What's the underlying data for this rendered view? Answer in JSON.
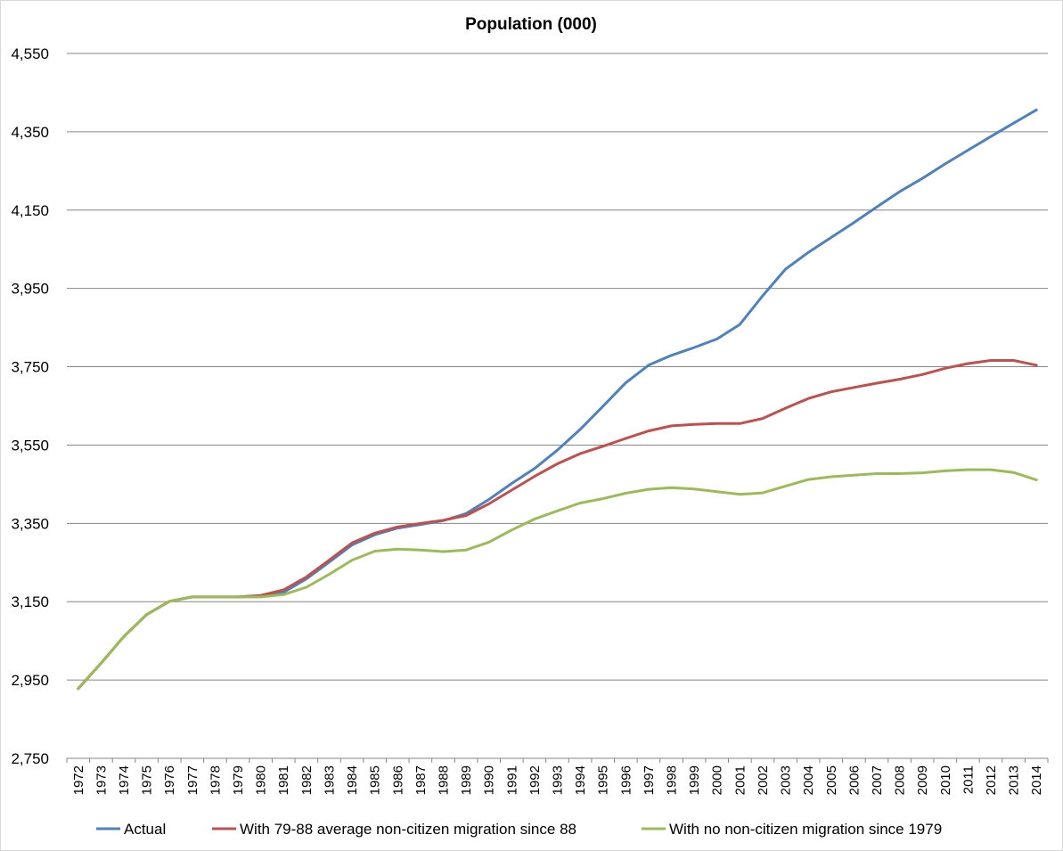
{
  "chart_data": {
    "type": "line",
    "title": "Population (000)",
    "xlabel": "",
    "ylabel": "",
    "ylim": [
      2750,
      4550
    ],
    "yticks": [
      "2,750",
      "2,950",
      "3,150",
      "3,350",
      "3,550",
      "3,750",
      "3,950",
      "4,150",
      "4,350",
      "4,550"
    ],
    "ytick_values": [
      2750,
      2950,
      3150,
      3350,
      3550,
      3750,
      3950,
      4150,
      4350,
      4550
    ],
    "grid": "horizontal",
    "legend_position": "bottom",
    "categories": [
      "1972",
      "1973",
      "1974",
      "1975",
      "1976",
      "1977",
      "1978",
      "1979",
      "1980",
      "1981",
      "1982",
      "1983",
      "1984",
      "1985",
      "1986",
      "1987",
      "1988",
      "1989",
      "1990",
      "1991",
      "1992",
      "1993",
      "1994",
      "1995",
      "1996",
      "1997",
      "1998",
      "1999",
      "2000",
      "2001",
      "2002",
      "2003",
      "2004",
      "2005",
      "2006",
      "2007",
      "2008",
      "2009",
      "2010",
      "2011",
      "2012",
      "2013",
      "2014"
    ],
    "series": [
      {
        "name": "Actual",
        "color": "#4f81bd",
        "values": [
          2928,
          2993,
          3061,
          3117,
          3151,
          3162,
          3162,
          3162,
          3163,
          3174,
          3208,
          3251,
          3295,
          3321,
          3338,
          3347,
          3357,
          3375,
          3411,
          3452,
          3490,
          3537,
          3590,
          3649,
          3709,
          3754,
          3779,
          3799,
          3821,
          3858,
          3931,
          3999,
          4042,
          4080,
          4118,
          4158,
          4197,
          4231,
          4268,
          4303,
          4338,
          4372,
          4406
        ]
      },
      {
        "name": "With 79-88 average non-citizen migration since 88",
        "color": "#c0504d",
        "values": [
          2928,
          2993,
          3061,
          3117,
          3151,
          3162,
          3162,
          3162,
          3166,
          3180,
          3213,
          3256,
          3300,
          3325,
          3341,
          3350,
          3358,
          3370,
          3400,
          3435,
          3470,
          3502,
          3528,
          3547,
          3567,
          3586,
          3599,
          3603,
          3605,
          3605,
          3618,
          3644,
          3669,
          3686,
          3697,
          3708,
          3718,
          3730,
          3746,
          3758,
          3766,
          3766,
          3754
        ]
      },
      {
        "name": "With no non-citizen migration since 1979",
        "color": "#9bbb59",
        "values": [
          2928,
          2993,
          3061,
          3117,
          3151,
          3162,
          3162,
          3162,
          3162,
          3168,
          3187,
          3220,
          3256,
          3279,
          3284,
          3282,
          3278,
          3282,
          3302,
          3333,
          3361,
          3382,
          3402,
          3413,
          3427,
          3437,
          3441,
          3438,
          3431,
          3424,
          3428,
          3445,
          3462,
          3469,
          3473,
          3477,
          3477,
          3479,
          3484,
          3487,
          3487,
          3480,
          3461
        ]
      }
    ]
  }
}
